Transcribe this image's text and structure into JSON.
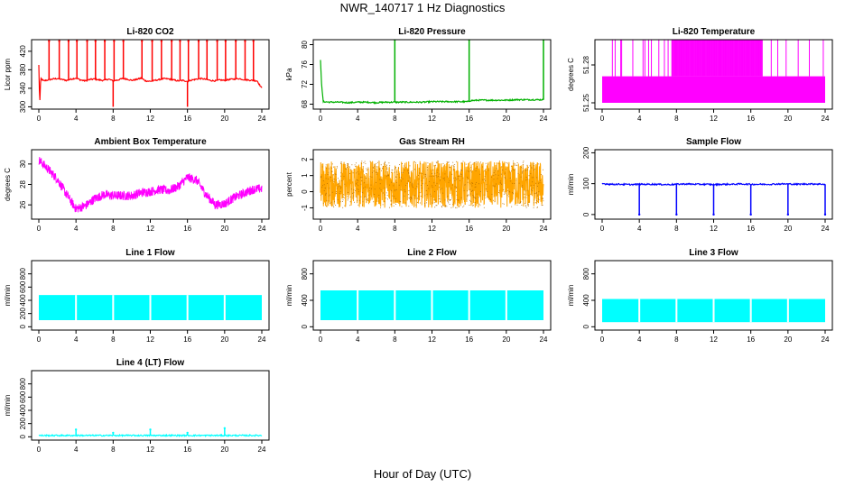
{
  "page": {
    "title": "NWR_140717  1 Hz Diagnostics",
    "x_caption": "Hour of Day (UTC)"
  },
  "chart_data": [
    {
      "type": "line",
      "title": "Li-820 CO2",
      "ylabel": "Licor ppm",
      "color": "#ff0000",
      "xlim": [
        0,
        24
      ],
      "ylim": [
        295,
        445
      ],
      "xticks": [
        0,
        4,
        8,
        12,
        16,
        20,
        24
      ],
      "yticks": [
        300,
        340,
        380,
        420
      ],
      "x": [
        0,
        0.1,
        0.2,
        0.5,
        1,
        1.5,
        2,
        2.5,
        3,
        3.5,
        4,
        4.5,
        5,
        5.5,
        6,
        6.5,
        7,
        7.5,
        8,
        8.5,
        9,
        9.5,
        10,
        10.5,
        11,
        11.5,
        12,
        12.5,
        13,
        13.5,
        14,
        14.5,
        15,
        15.5,
        16,
        16.5,
        17,
        17.5,
        18,
        18.5,
        19,
        19.5,
        20,
        20.5,
        21,
        21.5,
        22,
        22.5,
        23,
        23.5,
        24
      ],
      "y": [
        390,
        302,
        362,
        356,
        358,
        360,
        361,
        359,
        357,
        360,
        362,
        358,
        356,
        359,
        360,
        358,
        357,
        360,
        356,
        358,
        361,
        360,
        357,
        359,
        362,
        356,
        355,
        357,
        359,
        361,
        360,
        358,
        356,
        357,
        355,
        358,
        360,
        361,
        359,
        357,
        356,
        358,
        357,
        359,
        360,
        361,
        359,
        358,
        357,
        356,
        340
      ],
      "spikes": [
        1.1,
        2.2,
        3.2,
        4.1,
        5.2,
        6.1,
        7.1,
        8.1,
        9.1,
        11.1,
        12.2,
        13.2,
        14.3,
        15.2,
        16.1,
        17.2,
        18.1,
        19.2,
        20.1,
        21.2,
        22.2,
        23.1
      ],
      "spike_value": 442,
      "dips": [
        8.0,
        16.0
      ],
      "dip_value": 300
    },
    {
      "type": "line",
      "title": "Li-820 Pressure",
      "ylabel": "kPa",
      "color": "#00b000",
      "xlim": [
        0,
        24
      ],
      "ylim": [
        67,
        81
      ],
      "xticks": [
        0,
        4,
        8,
        12,
        16,
        20,
        24
      ],
      "yticks": [
        68,
        72,
        76,
        80
      ],
      "x": [
        0,
        0.15,
        0.3,
        1,
        2,
        3,
        4,
        5,
        6,
        7,
        8,
        9,
        10,
        11,
        12,
        13,
        14,
        15,
        15.9,
        16.1,
        17,
        18,
        19,
        20,
        21,
        22,
        23,
        23.9,
        24
      ],
      "y": [
        77,
        71,
        68.5,
        68.4,
        68.4,
        68.3,
        68.4,
        68.4,
        68.3,
        68.4,
        68.4,
        68.4,
        68.4,
        68.4,
        68.5,
        68.5,
        68.5,
        68.5,
        68.5,
        68.7,
        68.8,
        68.8,
        68.8,
        68.8,
        68.9,
        68.9,
        68.9,
        68.9,
        68.9
      ],
      "spikes": [
        8.0,
        16.0,
        24.0
      ],
      "spike_value": 81
    },
    {
      "type": "band",
      "title": "Li-820 Temperature",
      "ylabel": "degrees C",
      "color": "#ff00ff",
      "xlim": [
        0,
        24
      ],
      "ylim": [
        51.245,
        51.3
      ],
      "xticks": [
        0,
        4,
        8,
        12,
        16,
        20,
        24
      ],
      "yticks": [
        51.25,
        51.28
      ],
      "band_low": 51.25,
      "band_high": 51.271,
      "burst_value": 51.3,
      "burst_range": [
        7.5,
        17.3
      ],
      "sparse_bursts": [
        1.1,
        1.4,
        2.0,
        2.1,
        3.3,
        4.4,
        4.6,
        5.0,
        5.3,
        6.1,
        6.7,
        7.1,
        18.2,
        18.9,
        19.8,
        21.1,
        22.3,
        23.8
      ]
    },
    {
      "type": "noisy",
      "title": "Ambient Box Temperature",
      "ylabel": "degrees C",
      "color": "#ff00ff",
      "xlim": [
        0,
        24
      ],
      "ylim": [
        24.6,
        31.4
      ],
      "xticks": [
        0,
        4,
        8,
        12,
        16,
        20,
        24
      ],
      "yticks": [
        26,
        28,
        30
      ],
      "x": [
        0,
        1,
        2,
        3,
        4,
        5,
        6,
        7,
        8,
        9,
        10,
        11,
        12,
        13,
        14,
        15,
        16,
        17,
        18,
        19,
        20,
        21,
        22,
        23,
        24
      ],
      "y": [
        30.4,
        29.5,
        28.5,
        27.0,
        25.6,
        25.9,
        26.6,
        27.0,
        26.9,
        26.9,
        26.9,
        27.2,
        27.3,
        27.5,
        27.4,
        27.8,
        28.7,
        28.4,
        27.0,
        26.0,
        26.1,
        26.7,
        27.1,
        27.5,
        27.6
      ],
      "noise": 0.9
    },
    {
      "type": "noisy",
      "title": "Gas Stream RH",
      "ylabel": "percent",
      "color": "#ffa500",
      "xlim": [
        0,
        24
      ],
      "ylim": [
        -1.7,
        2.6
      ],
      "xticks": [
        0,
        4,
        8,
        12,
        16,
        20,
        24
      ],
      "yticks": [
        -1,
        0,
        1,
        2
      ],
      "x": [
        0,
        24
      ],
      "y": [
        0.45,
        0.45
      ],
      "noise": 2.9
    },
    {
      "type": "line",
      "title": "Sample Flow",
      "ylabel": "ml/min",
      "color": "#0000ff",
      "xlim": [
        0,
        24
      ],
      "ylim": [
        -15,
        210
      ],
      "xticks": [
        0,
        4,
        8,
        12,
        16,
        20,
        24
      ],
      "yticks": [
        0,
        100,
        200
      ],
      "x": [
        0,
        0.5,
        1,
        2,
        3,
        4,
        5,
        6,
        7,
        8,
        9,
        10,
        11,
        12,
        13,
        14,
        15,
        16,
        17,
        18,
        19,
        20,
        21,
        22,
        23,
        24
      ],
      "y": [
        100,
        99,
        98,
        98,
        97,
        98,
        98,
        98,
        97,
        98,
        99,
        98,
        98,
        97,
        98,
        98,
        99,
        98,
        98,
        98,
        99,
        99,
        98,
        99,
        99,
        98
      ],
      "spikes": [
        4.0,
        8.0,
        12.0,
        16.0,
        20.0,
        24.0
      ],
      "spike_value": 0
    },
    {
      "type": "band",
      "title": "Line 1 Flow",
      "ylabel": "ml/min",
      "color": "#00ffff",
      "xlim": [
        0,
        24
      ],
      "ylim": [
        -50,
        1000
      ],
      "xticks": [
        0,
        4,
        8,
        12,
        16,
        20,
        24
      ],
      "yticks": [
        0,
        200,
        400,
        600,
        800
      ],
      "band_low": 100,
      "band_high": 480,
      "gaps": [
        4.0,
        8.0,
        12.0,
        16.0,
        20.0
      ]
    },
    {
      "type": "band",
      "title": "Line 2 Flow",
      "ylabel": "ml/min",
      "color": "#00ffff",
      "xlim": [
        0,
        24
      ],
      "ylim": [
        -50,
        1000
      ],
      "xticks": [
        0,
        4,
        8,
        12,
        16,
        20,
        24
      ],
      "yticks": [
        0,
        400,
        800
      ],
      "band_low": 100,
      "band_high": 550,
      "gaps": [
        4.0,
        8.0,
        12.0,
        16.0,
        20.0
      ]
    },
    {
      "type": "band",
      "title": "Line 3 Flow",
      "ylabel": "ml/min",
      "color": "#00ffff",
      "xlim": [
        0,
        24
      ],
      "ylim": [
        -50,
        1000
      ],
      "xticks": [
        0,
        4,
        8,
        12,
        16,
        20,
        24
      ],
      "yticks": [
        0,
        400,
        800
      ],
      "band_low": 70,
      "band_high": 420,
      "gaps": [
        4.0,
        8.0,
        12.0,
        16.0,
        20.0
      ]
    },
    {
      "type": "line",
      "title": "Line 4 (LT) Flow",
      "ylabel": "ml/min",
      "color": "#00ffff",
      "xlim": [
        0,
        24
      ],
      "ylim": [
        -50,
        1000
      ],
      "xticks": [
        0,
        4,
        8,
        12,
        16,
        20,
        24
      ],
      "yticks": [
        0,
        200,
        400,
        600,
        800
      ],
      "x": [
        0,
        24
      ],
      "y": [
        20,
        20
      ],
      "spikes": [
        4.0,
        8.0,
        12.0,
        16.0,
        20.0
      ],
      "spike_values": [
        110,
        60,
        110,
        60,
        130
      ]
    }
  ]
}
